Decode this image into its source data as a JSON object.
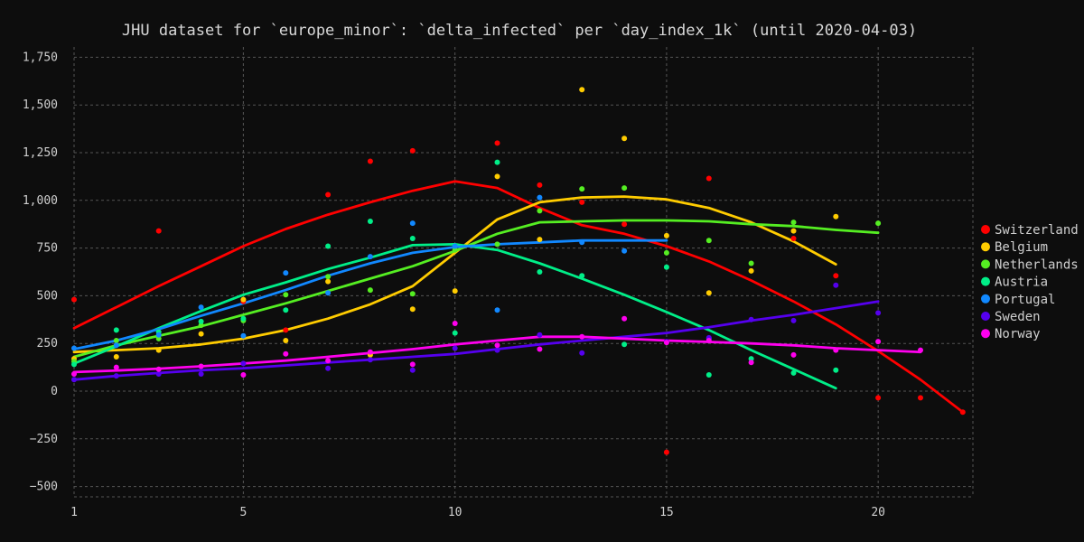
{
  "chart_data": {
    "type": "scatter",
    "title": "JHU dataset for `europe_minor`: `delta_infected` per `day_index_1k` (until 2020-04-03)",
    "xlabel": "",
    "ylabel": "",
    "xlim": [
      1,
      22
    ],
    "ylim": [
      -540,
      1800
    ],
    "x_ticks": [
      1,
      5,
      10,
      15,
      20
    ],
    "y_ticks": [
      -500,
      -250,
      0,
      250,
      500,
      750,
      1000,
      1250,
      1500,
      1750
    ],
    "y_tick_labels": [
      "−500",
      "−250",
      "0",
      "250",
      "500",
      "750",
      "1,000",
      "1,250",
      "1,500",
      "1,750"
    ],
    "grid": true,
    "legend_position": "right",
    "series": [
      {
        "name": "Switzerland",
        "color": "#ff0000",
        "points": [
          [
            1,
            480
          ],
          [
            3,
            840
          ],
          [
            5,
            470
          ],
          [
            6,
            320
          ],
          [
            7,
            1030
          ],
          [
            8,
            1205
          ],
          [
            9,
            1260
          ],
          [
            11,
            1300
          ],
          [
            12,
            1080
          ],
          [
            13,
            990
          ],
          [
            14,
            875
          ],
          [
            15,
            -320
          ],
          [
            16,
            1115
          ],
          [
            18,
            800
          ],
          [
            19,
            605
          ],
          [
            20,
            -35
          ],
          [
            21,
            -35
          ],
          [
            22,
            -110
          ]
        ],
        "trend": [
          [
            1,
            330
          ],
          [
            2,
            440
          ],
          [
            3,
            550
          ],
          [
            4,
            655
          ],
          [
            5,
            760
          ],
          [
            6,
            850
          ],
          [
            7,
            925
          ],
          [
            8,
            990
          ],
          [
            9,
            1050
          ],
          [
            10,
            1100
          ],
          [
            11,
            1065
          ],
          [
            12,
            960
          ],
          [
            13,
            870
          ],
          [
            14,
            825
          ],
          [
            15,
            760
          ],
          [
            16,
            680
          ],
          [
            17,
            580
          ],
          [
            18,
            470
          ],
          [
            19,
            350
          ],
          [
            20,
            210
          ],
          [
            21,
            60
          ],
          [
            22,
            -110
          ]
        ]
      },
      {
        "name": "Belgium",
        "color": "#ffcc00",
        "points": [
          [
            1,
            170
          ],
          [
            2,
            180
          ],
          [
            3,
            215
          ],
          [
            4,
            300
          ],
          [
            5,
            480
          ],
          [
            6,
            265
          ],
          [
            7,
            575
          ],
          [
            8,
            190
          ],
          [
            9,
            430
          ],
          [
            10,
            525
          ],
          [
            11,
            1125
          ],
          [
            12,
            795
          ],
          [
            13,
            1580
          ],
          [
            14,
            1325
          ],
          [
            15,
            815
          ],
          [
            16,
            515
          ],
          [
            17,
            630
          ],
          [
            18,
            840
          ],
          [
            19,
            915
          ]
        ],
        "trend": [
          [
            1,
            205
          ],
          [
            2,
            215
          ],
          [
            3,
            225
          ],
          [
            4,
            245
          ],
          [
            5,
            275
          ],
          [
            6,
            320
          ],
          [
            7,
            380
          ],
          [
            8,
            455
          ],
          [
            9,
            550
          ],
          [
            10,
            725
          ],
          [
            11,
            900
          ],
          [
            12,
            990
          ],
          [
            13,
            1015
          ],
          [
            14,
            1020
          ],
          [
            15,
            1005
          ],
          [
            16,
            960
          ],
          [
            17,
            885
          ],
          [
            18,
            785
          ],
          [
            19,
            665
          ]
        ]
      },
      {
        "name": "Netherlands",
        "color": "#55ee22",
        "points": [
          [
            1,
            155
          ],
          [
            2,
            265
          ],
          [
            3,
            275
          ],
          [
            4,
            345
          ],
          [
            5,
            370
          ],
          [
            6,
            505
          ],
          [
            7,
            600
          ],
          [
            8,
            530
          ],
          [
            9,
            510
          ],
          [
            10,
            740
          ],
          [
            11,
            770
          ],
          [
            12,
            945
          ],
          [
            13,
            1060
          ],
          [
            14,
            1065
          ],
          [
            15,
            725
          ],
          [
            16,
            790
          ],
          [
            17,
            670
          ],
          [
            18,
            885
          ],
          [
            20,
            880
          ]
        ],
        "trend": [
          [
            1,
            180
          ],
          [
            2,
            240
          ],
          [
            3,
            290
          ],
          [
            4,
            340
          ],
          [
            5,
            400
          ],
          [
            6,
            460
          ],
          [
            7,
            525
          ],
          [
            8,
            590
          ],
          [
            9,
            655
          ],
          [
            10,
            735
          ],
          [
            11,
            825
          ],
          [
            12,
            885
          ],
          [
            13,
            890
          ],
          [
            14,
            895
          ],
          [
            15,
            895
          ],
          [
            16,
            890
          ],
          [
            17,
            875
          ],
          [
            18,
            865
          ],
          [
            19,
            845
          ],
          [
            20,
            830
          ]
        ]
      },
      {
        "name": "Austria",
        "color": "#00ee88",
        "points": [
          [
            1,
            140
          ],
          [
            2,
            320
          ],
          [
            3,
            310
          ],
          [
            4,
            365
          ],
          [
            5,
            380
          ],
          [
            6,
            425
          ],
          [
            7,
            760
          ],
          [
            8,
            890
          ],
          [
            9,
            800
          ],
          [
            10,
            305
          ],
          [
            11,
            1200
          ],
          [
            12,
            625
          ],
          [
            13,
            605
          ],
          [
            14,
            245
          ],
          [
            15,
            650
          ],
          [
            16,
            85
          ],
          [
            17,
            170
          ],
          [
            18,
            95
          ],
          [
            19,
            110
          ]
        ],
        "trend": [
          [
            1,
            145
          ],
          [
            2,
            235
          ],
          [
            3,
            330
          ],
          [
            4,
            420
          ],
          [
            5,
            505
          ],
          [
            6,
            570
          ],
          [
            7,
            640
          ],
          [
            8,
            700
          ],
          [
            9,
            765
          ],
          [
            10,
            770
          ],
          [
            11,
            740
          ],
          [
            12,
            670
          ],
          [
            13,
            590
          ],
          [
            14,
            505
          ],
          [
            15,
            415
          ],
          [
            16,
            320
          ],
          [
            17,
            215
          ],
          [
            18,
            115
          ],
          [
            19,
            15
          ]
        ]
      },
      {
        "name": "Portugal",
        "color": "#1188ff",
        "points": [
          [
            1,
            225
          ],
          [
            2,
            240
          ],
          [
            3,
            295
          ],
          [
            4,
            440
          ],
          [
            5,
            290
          ],
          [
            6,
            620
          ],
          [
            7,
            515
          ],
          [
            8,
            705
          ],
          [
            9,
            880
          ],
          [
            10,
            760
          ],
          [
            11,
            425
          ],
          [
            12,
            1015
          ],
          [
            13,
            780
          ],
          [
            14,
            735
          ],
          [
            16,
            275
          ]
        ],
        "trend": [
          [
            1,
            220
          ],
          [
            2,
            265
          ],
          [
            3,
            325
          ],
          [
            4,
            395
          ],
          [
            5,
            460
          ],
          [
            6,
            530
          ],
          [
            7,
            605
          ],
          [
            8,
            670
          ],
          [
            9,
            725
          ],
          [
            10,
            755
          ],
          [
            11,
            770
          ],
          [
            12,
            780
          ],
          [
            13,
            790
          ],
          [
            14,
            790
          ],
          [
            15,
            790
          ]
        ]
      },
      {
        "name": "Sweden",
        "color": "#5500ee",
        "points": [
          [
            1,
            60
          ],
          [
            2,
            80
          ],
          [
            3,
            90
          ],
          [
            4,
            90
          ],
          [
            5,
            145
          ],
          [
            7,
            120
          ],
          [
            8,
            165
          ],
          [
            9,
            110
          ],
          [
            10,
            225
          ],
          [
            11,
            215
          ],
          [
            12,
            295
          ],
          [
            13,
            200
          ],
          [
            15,
            260
          ],
          [
            16,
            280
          ],
          [
            17,
            375
          ],
          [
            18,
            370
          ],
          [
            19,
            555
          ],
          [
            20,
            410
          ]
        ],
        "trend": [
          [
            1,
            60
          ],
          [
            2,
            80
          ],
          [
            3,
            95
          ],
          [
            4,
            110
          ],
          [
            5,
            120
          ],
          [
            6,
            135
          ],
          [
            7,
            150
          ],
          [
            8,
            165
          ],
          [
            9,
            180
          ],
          [
            10,
            195
          ],
          [
            11,
            220
          ],
          [
            12,
            245
          ],
          [
            13,
            265
          ],
          [
            14,
            285
          ],
          [
            15,
            305
          ],
          [
            16,
            335
          ],
          [
            17,
            370
          ],
          [
            18,
            400
          ],
          [
            19,
            435
          ],
          [
            20,
            470
          ]
        ]
      },
      {
        "name": "Norway",
        "color": "#ff00ee",
        "points": [
          [
            1,
            90
          ],
          [
            2,
            125
          ],
          [
            3,
            115
          ],
          [
            4,
            130
          ],
          [
            5,
            85
          ],
          [
            6,
            195
          ],
          [
            7,
            160
          ],
          [
            8,
            205
          ],
          [
            9,
            140
          ],
          [
            10,
            355
          ],
          [
            11,
            240
          ],
          [
            12,
            220
          ],
          [
            13,
            285
          ],
          [
            14,
            380
          ],
          [
            15,
            255
          ],
          [
            16,
            265
          ],
          [
            17,
            150
          ],
          [
            18,
            190
          ],
          [
            19,
            215
          ],
          [
            20,
            260
          ],
          [
            21,
            215
          ]
        ],
        "trend": [
          [
            1,
            100
          ],
          [
            2,
            108
          ],
          [
            3,
            118
          ],
          [
            4,
            130
          ],
          [
            5,
            145
          ],
          [
            6,
            160
          ],
          [
            7,
            180
          ],
          [
            8,
            200
          ],
          [
            9,
            220
          ],
          [
            10,
            245
          ],
          [
            11,
            265
          ],
          [
            12,
            285
          ],
          [
            13,
            285
          ],
          [
            14,
            275
          ],
          [
            15,
            265
          ],
          [
            16,
            258
          ],
          [
            17,
            250
          ],
          [
            18,
            240
          ],
          [
            19,
            225
          ],
          [
            20,
            215
          ],
          [
            21,
            205
          ]
        ]
      }
    ]
  }
}
